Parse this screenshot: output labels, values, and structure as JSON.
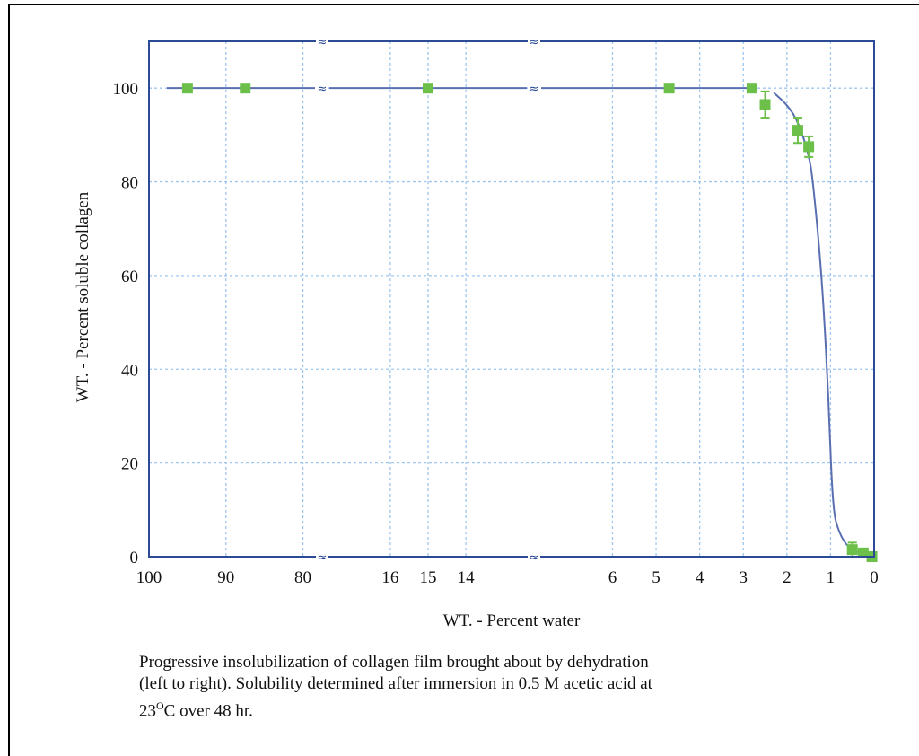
{
  "chart_data": {
    "type": "scatter",
    "xlabel": "WT. - Percent water",
    "ylabel": "WT. - Percent soluble collagen",
    "ylim": [
      0,
      110
    ],
    "y_ticks": [
      0,
      20,
      40,
      60,
      80,
      100
    ],
    "x_axis_direction": "decreasing left to right, broken axis",
    "x_segments": [
      {
        "range": [
          100,
          77.5
        ],
        "ticks": [
          100,
          90,
          80
        ]
      },
      {
        "range": [
          17.8,
          12.2
        ],
        "ticks": [
          16,
          15,
          14
        ]
      },
      {
        "range": [
          7.8,
          0
        ],
        "ticks": [
          6,
          5,
          4,
          3,
          2,
          1,
          0
        ]
      }
    ],
    "axis_breaks": [
      "between 80 and 16",
      "between 14 and 6"
    ],
    "grid": true,
    "legend": "none",
    "series": [
      {
        "marker": "square",
        "color": "#6cc04a",
        "points": [
          {
            "x": 95,
            "y": 100
          },
          {
            "x": 87.5,
            "y": 100
          },
          {
            "x": 15,
            "y": 100
          },
          {
            "x": 4.7,
            "y": 100
          },
          {
            "x": 2.8,
            "y": 100
          },
          {
            "x": 2.5,
            "y": 96.5,
            "err": 2.8
          },
          {
            "x": 1.75,
            "y": 91,
            "err": 2.7
          },
          {
            "x": 1.5,
            "y": 87.5,
            "err": 2.2
          },
          {
            "x": 0.5,
            "y": 1.5,
            "err": 1.5
          },
          {
            "x": 0.25,
            "y": 0.8
          },
          {
            "x": 0.05,
            "y": 0
          }
        ]
      }
    ],
    "curve": {
      "color": "#5a6fb0",
      "flat_y": 100,
      "flat_until_x": 2.8,
      "points": [
        {
          "x": 2.3,
          "y": 99
        },
        {
          "x": 2.0,
          "y": 96.5
        },
        {
          "x": 1.75,
          "y": 93
        },
        {
          "x": 1.5,
          "y": 86
        },
        {
          "x": 1.4,
          "y": 80
        },
        {
          "x": 1.2,
          "y": 60
        },
        {
          "x": 1.05,
          "y": 35
        },
        {
          "x": 0.95,
          "y": 10
        },
        {
          "x": 0.8,
          "y": 5
        },
        {
          "x": 0.6,
          "y": 2
        },
        {
          "x": 0.35,
          "y": 0.8
        },
        {
          "x": 0.1,
          "y": 0.2
        }
      ]
    }
  },
  "caption": {
    "line1": "Progressive insolubilization of collagen film brought about by dehydration",
    "line2": "(left to right). Solubility determined after immersion in 0.5 M acetic acid at",
    "line3_pre": "23",
    "line3_sup": "O",
    "line3_post": "C over 48 hr."
  }
}
